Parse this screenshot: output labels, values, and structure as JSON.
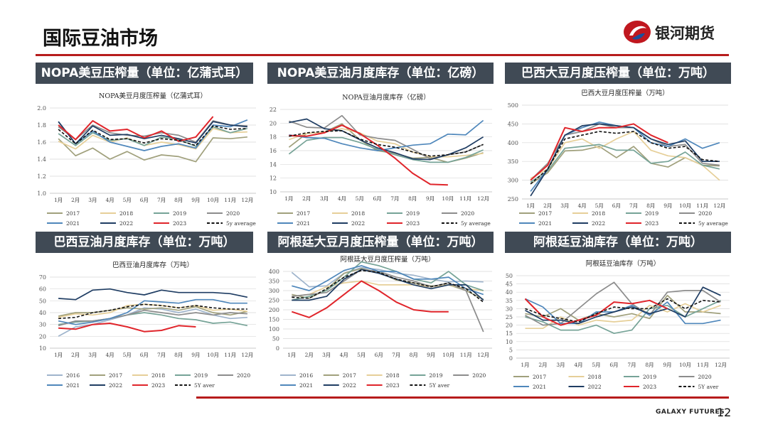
{
  "page": {
    "title": "国际豆油市场",
    "brand": "银河期货",
    "footer": "GALAXY FUTURES",
    "page_number": "12"
  },
  "colors": {
    "rule": "#b71c1c",
    "header_bg": "#404a55",
    "logo_red": "#c0171f",
    "logo_blue": "#1a4f9c",
    "series": {
      "2016": "#9fb4cc",
      "2017": "#a0a07c",
      "2018": "#e6cf98",
      "2019": "#76a397",
      "2020": "#8c8c8c",
      "2021": "#4f87bb",
      "2022": "#1f3d63",
      "2023": "#e0252b",
      "5Y": "#111111"
    }
  },
  "panels": [
    {
      "header": "NOPA美豆压榨量（单位：亿蒲式耳）"
    },
    {
      "header": "NOPA美豆油月度库存（单位：亿磅）"
    },
    {
      "header": "巴西大豆月度压榨量（单位：万吨）"
    },
    {
      "header": "巴西豆油月度库存（单位：万吨）"
    },
    {
      "header": "阿根廷大豆月度压榨量（单位：万吨）"
    },
    {
      "header": "阿根廷豆油库存（单位：万吨）"
    }
  ],
  "chart_data": [
    {
      "type": "line",
      "title": "NOPA美豆月度压榨量（亿蒲式耳）",
      "categories": [
        "1月",
        "2月",
        "3月",
        "4月",
        "5月",
        "6月",
        "7月",
        "8月",
        "9月",
        "10月",
        "11月",
        "12月"
      ],
      "ylim": [
        1.0,
        2.0
      ],
      "yticks": [
        "1.0",
        "1.2",
        "1.4",
        "1.6",
        "1.8",
        "2.0"
      ],
      "series": [
        {
          "name": "2017",
          "values": [
            1.64,
            1.44,
            1.53,
            1.4,
            1.49,
            1.39,
            1.45,
            1.43,
            1.37,
            1.65,
            1.64,
            1.66
          ]
        },
        {
          "name": "2018",
          "values": [
            1.61,
            1.52,
            1.68,
            1.6,
            1.65,
            1.56,
            1.6,
            1.57,
            1.52,
            1.76,
            1.71,
            1.72
          ]
        },
        {
          "name": "2019",
          "values": [
            1.7,
            1.56,
            1.71,
            1.62,
            1.64,
            1.56,
            1.66,
            1.63,
            1.55,
            1.78,
            1.71,
            1.76
          ]
        },
        {
          "name": "2020",
          "values": [
            1.78,
            1.63,
            1.8,
            1.71,
            1.68,
            1.67,
            1.71,
            1.68,
            1.6,
            1.85,
            1.8,
            1.79
          ]
        },
        {
          "name": "2021",
          "values": [
            1.84,
            1.58,
            1.73,
            1.6,
            1.55,
            1.5,
            1.55,
            1.58,
            1.53,
            1.8,
            1.78,
            1.86
          ]
        },
        {
          "name": "2022",
          "values": [
            1.84,
            1.58,
            1.79,
            1.68,
            1.69,
            1.64,
            1.68,
            1.64,
            1.59,
            1.84,
            1.8,
            1.78
          ]
        },
        {
          "name": "2023",
          "values": [
            1.8,
            1.63,
            1.85,
            1.73,
            1.75,
            1.65,
            1.73,
            1.61,
            1.66,
            1.9,
            null,
            null
          ]
        },
        {
          "name": "5y average",
          "values": [
            1.75,
            1.58,
            1.74,
            1.63,
            1.64,
            1.59,
            1.64,
            1.62,
            1.56,
            1.79,
            1.75,
            1.76
          ]
        }
      ],
      "legend": [
        "2017",
        "2018",
        "2019",
        "2020",
        "2021",
        "2022",
        "2023",
        "5y average"
      ]
    },
    {
      "type": "line",
      "title": "NOPA豆油月度库存（亿磅）",
      "categories": [
        "1月",
        "2月",
        "3月",
        "4月",
        "5月",
        "6月",
        "7月",
        "8月",
        "9月",
        "10月",
        "11月",
        "12月"
      ],
      "ylim": [
        10,
        22
      ],
      "yticks": [
        "10",
        "12",
        "14",
        "16",
        "18",
        "20",
        "22"
      ],
      "series": [
        {
          "name": "2017",
          "values": [
            16.5,
            18.5,
            18.7,
            19.9,
            17.6,
            16.0,
            15.6,
            14.9,
            15.0,
            14.3,
            14.9,
            15.7
          ]
        },
        {
          "name": "2018",
          "values": [
            17.6,
            18.5,
            18.7,
            19.2,
            18.6,
            17.4,
            17.0,
            15.8,
            15.1,
            15.1,
            15.3,
            15.6
          ]
        },
        {
          "name": "2019",
          "values": [
            15.5,
            17.5,
            17.9,
            17.9,
            17.2,
            16.2,
            15.4,
            14.7,
            14.3,
            14.3,
            15.0,
            16.1
          ]
        },
        {
          "name": "2020",
          "values": [
            20.3,
            19.4,
            19.3,
            21.1,
            18.3,
            17.8,
            17.5,
            16.2,
            14.8,
            15.4,
            15.8,
            16.9
          ]
        },
        {
          "name": "2021",
          "values": [
            18.3,
            17.9,
            17.8,
            17.0,
            16.4,
            16.0,
            16.4,
            16.8,
            17.0,
            18.4,
            18.3,
            20.4
          ]
        },
        {
          "name": "2022",
          "values": [
            20.1,
            20.6,
            19.2,
            18.9,
            17.6,
            16.4,
            15.7,
            14.8,
            14.7,
            15.4,
            16.4,
            18.0
          ]
        },
        {
          "name": "2023",
          "values": [
            18.2,
            18.1,
            18.6,
            19.7,
            18.5,
            16.8,
            14.9,
            12.7,
            11.1,
            11.0,
            null,
            null
          ]
        },
        {
          "name": "5y average",
          "values": [
            18.1,
            18.6,
            18.8,
            18.9,
            17.7,
            16.9,
            16.5,
            15.8,
            15.2,
            15.4,
            15.8,
            16.9
          ]
        }
      ],
      "legend": [
        "2017",
        "2018",
        "2019",
        "2020",
        "2021",
        "2022",
        "2023",
        "5y average"
      ]
    },
    {
      "type": "line",
      "title": "巴西大豆月度压榨量（万吨）",
      "categories": [
        "1月",
        "2月",
        "3月",
        "4月",
        "5月",
        "6月",
        "7月",
        "8月",
        "9月",
        "10月",
        "11月",
        "12月"
      ],
      "ylim": [
        250,
        500
      ],
      "yticks": [
        "250",
        "300",
        "350",
        "400",
        "450",
        "500"
      ],
      "series": [
        {
          "name": "2017",
          "values": [
            290,
            320,
            378,
            380,
            390,
            360,
            390,
            345,
            335,
            360,
            340,
            338
          ]
        },
        {
          "name": "2018",
          "values": [
            305,
            330,
            400,
            410,
            385,
            410,
            430,
            380,
            365,
            360,
            340,
            300
          ]
        },
        {
          "name": "2019",
          "values": [
            295,
            325,
            385,
            390,
            395,
            380,
            380,
            345,
            350,
            375,
            340,
            330
          ]
        },
        {
          "name": "2020",
          "values": [
            300,
            345,
            420,
            430,
            450,
            440,
            440,
            410,
            390,
            395,
            345,
            340
          ]
        },
        {
          "name": "2021",
          "values": [
            270,
            330,
            420,
            440,
            455,
            445,
            440,
            400,
            390,
            410,
            385,
            400
          ]
        },
        {
          "name": "2022",
          "values": [
            258,
            330,
            420,
            445,
            450,
            445,
            440,
            410,
            395,
            405,
            350,
            350
          ]
        },
        {
          "name": "2023",
          "values": [
            300,
            340,
            440,
            430,
            440,
            440,
            450,
            420,
            400,
            null,
            null,
            null
          ]
        },
        {
          "name": "5y average",
          "values": [
            290,
            330,
            410,
            420,
            430,
            425,
            430,
            400,
            385,
            390,
            355,
            350
          ]
        }
      ],
      "legend": [
        "2017",
        "2018",
        "2019",
        "2020",
        "2021",
        "2022",
        "2023",
        "5y average"
      ]
    },
    {
      "type": "line",
      "title": "巴西豆油月度库存（万吨）",
      "categories": [
        "1月",
        "2月",
        "3月",
        "4月",
        "5月",
        "6月",
        "7月",
        "8月",
        "9月",
        "10月",
        "11月",
        "12月"
      ],
      "ylim": [
        10,
        70
      ],
      "yticks": [
        "10",
        "20",
        "30",
        "40",
        "50",
        "60",
        "70"
      ],
      "series": [
        {
          "name": "2016",
          "values": [
            20,
            28,
            30,
            34,
            38,
            44,
            43,
            40,
            43,
            38,
            35,
            36
          ]
        },
        {
          "name": "2017",
          "values": [
            37,
            40,
            40,
            42,
            44,
            43,
            44,
            42,
            45,
            40,
            38,
            41
          ]
        },
        {
          "name": "2018",
          "values": [
            36,
            39,
            38,
            40,
            46,
            47,
            46,
            44,
            46,
            42,
            43,
            41
          ]
        },
        {
          "name": "2019",
          "values": [
            30,
            32,
            33,
            35,
            38,
            40,
            38,
            35,
            34,
            31,
            32,
            29
          ]
        },
        {
          "name": "2020",
          "values": [
            29,
            33,
            33,
            35,
            38,
            42,
            40,
            38,
            40,
            38,
            40,
            39
          ]
        },
        {
          "name": "2021",
          "values": [
            33,
            30,
            32,
            35,
            40,
            50,
            49,
            48,
            51,
            51,
            48,
            48
          ]
        },
        {
          "name": "2022",
          "values": [
            52,
            51,
            59,
            60,
            57,
            55,
            59,
            57,
            57,
            57,
            56,
            53
          ]
        },
        {
          "name": "2023",
          "values": [
            27,
            26,
            30,
            31,
            28,
            24,
            25,
            29,
            28,
            null,
            null,
            null
          ]
        },
        {
          "name": "5Y aver",
          "values": [
            35,
            36,
            40,
            42,
            45,
            47,
            46,
            44,
            46,
            44,
            43,
            43
          ]
        }
      ],
      "legend": [
        "2016",
        "2017",
        "2018",
        "2019",
        "2020",
        "2021",
        "2022",
        "2023",
        "5Y aver"
      ]
    },
    {
      "type": "line",
      "title": "阿根廷大豆月度压榨量（万吨）",
      "categories": [
        "1月",
        "2月",
        "3月",
        "4月",
        "5月",
        "6月",
        "7月",
        "8月",
        "9月",
        "10月",
        "11月",
        "12月"
      ],
      "ylim": [
        0,
        400
      ],
      "yticks": [
        "0",
        "50",
        "100",
        "150",
        "200",
        "250",
        "300",
        "350",
        "400"
      ],
      "series": [
        {
          "name": "2016",
          "values": [
            395,
            320,
            325,
            390,
            420,
            410,
            390,
            380,
            360,
            345,
            350,
            345
          ]
        },
        {
          "name": "2017",
          "values": [
            280,
            260,
            305,
            390,
            415,
            395,
            355,
            340,
            325,
            330,
            300,
            255
          ]
        },
        {
          "name": "2018",
          "values": [
            270,
            280,
            320,
            340,
            350,
            330,
            330,
            330,
            320,
            330,
            310,
            300
          ]
        },
        {
          "name": "2019",
          "values": [
            250,
            270,
            300,
            370,
            450,
            430,
            400,
            360,
            340,
            400,
            330,
            300
          ]
        },
        {
          "name": "2020",
          "values": [
            270,
            280,
            290,
            350,
            410,
            400,
            370,
            350,
            320,
            340,
            300,
            85
          ]
        },
        {
          "name": "2021",
          "values": [
            325,
            300,
            350,
            405,
            430,
            400,
            400,
            360,
            360,
            370,
            310,
            280
          ]
        },
        {
          "name": "2022",
          "values": [
            250,
            250,
            270,
            360,
            410,
            390,
            360,
            330,
            310,
            330,
            330,
            250
          ]
        },
        {
          "name": "2023",
          "values": [
            190,
            160,
            210,
            280,
            350,
            300,
            240,
            200,
            190,
            190,
            null,
            null
          ]
        },
        {
          "name": "5Y aver",
          "values": [
            265,
            260,
            310,
            370,
            405,
            395,
            360,
            340,
            320,
            340,
            310,
            240
          ]
        }
      ],
      "legend": [
        "2016",
        "2017",
        "2018",
        "2019",
        "2020",
        "2021",
        "2022",
        "2023",
        "5Y aver"
      ]
    },
    {
      "type": "line",
      "title": "阿根廷豆油库存（万吨）",
      "categories": [
        "1月",
        "2月",
        "3月",
        "4月",
        "5月",
        "6月",
        "7月",
        "8月",
        "9月",
        "10月",
        "11月",
        "12月"
      ],
      "ylim": [
        0,
        50
      ],
      "yticks": [
        "0",
        "5",
        "10",
        "15",
        "20",
        "25",
        "30",
        "35",
        "40",
        "45",
        "50"
      ],
      "series": [
        {
          "name": "2017",
          "values": [
            27,
            25,
            30,
            23,
            27,
            25,
            27,
            24,
            38,
            28,
            28,
            27
          ]
        },
        {
          "name": "2018",
          "values": [
            18,
            18,
            25,
            20,
            23,
            22,
            23,
            32,
            28,
            33,
            28,
            32
          ]
        },
        {
          "name": "2019",
          "values": [
            25,
            22,
            17,
            17,
            20,
            15,
            17,
            30,
            32,
            25,
            30,
            35
          ]
        },
        {
          "name": "2020",
          "values": [
            26,
            20,
            21,
            30,
            39,
            46,
            33,
            26,
            40,
            41,
            41,
            34
          ]
        },
        {
          "name": "2021",
          "values": [
            36,
            31,
            21,
            21,
            28,
            28,
            32,
            26,
            34,
            21,
            21,
            23
          ]
        },
        {
          "name": "2022",
          "values": [
            29,
            23,
            23,
            21,
            25,
            28,
            31,
            27,
            30,
            25,
            43,
            38
          ]
        },
        {
          "name": "2023",
          "values": [
            36,
            25,
            20,
            23,
            26,
            34,
            33,
            35,
            30,
            null,
            null,
            null
          ]
        },
        {
          "name": "5Y aver",
          "values": [
            30,
            26,
            24,
            22,
            27,
            31,
            30,
            30,
            36,
            30,
            35,
            34
          ]
        }
      ],
      "legend": [
        "2017",
        "2018",
        "2019",
        "2020",
        "2021",
        "2022",
        "2023",
        "5Y aver"
      ]
    }
  ]
}
